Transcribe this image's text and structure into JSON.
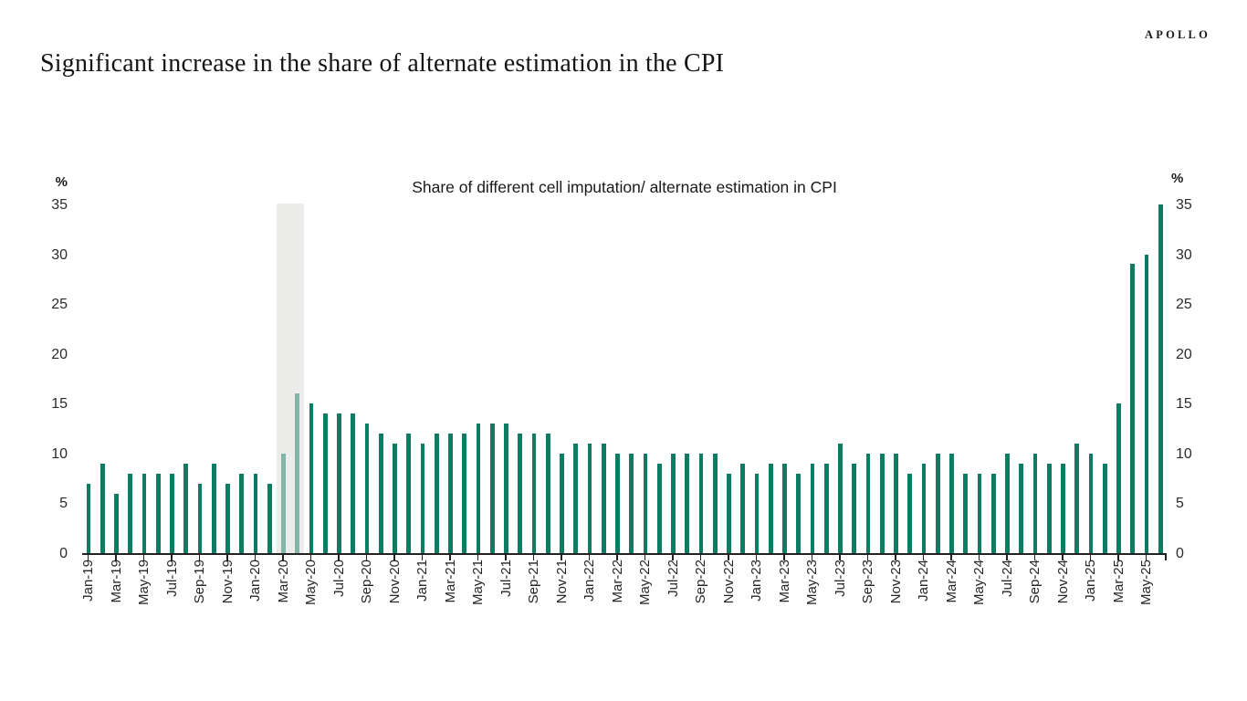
{
  "logo": "APOLLO",
  "title": "Significant increase in the share of alternate estimation in the CPI",
  "chart_data": {
    "type": "bar",
    "title": "Share of different cell imputation/ alternate estimation in CPI",
    "ylabel_left": "%",
    "ylabel_right": "%",
    "ylim": [
      0,
      35
    ],
    "yticks": [
      0,
      5,
      10,
      15,
      20,
      25,
      30,
      35
    ],
    "grid": false,
    "legend": "none",
    "bar_color": "#0E7C63",
    "highlight_band": {
      "from": "Mar-20",
      "to": "Apr-20",
      "color": "#ECECEA",
      "overlay": "rgba(236,236,234,0.52)"
    },
    "categories": [
      "Jan-19",
      "Feb-19",
      "Mar-19",
      "Apr-19",
      "May-19",
      "Jun-19",
      "Jul-19",
      "Aug-19",
      "Sep-19",
      "Oct-19",
      "Nov-19",
      "Dec-19",
      "Jan-20",
      "Feb-20",
      "Mar-20",
      "Apr-20",
      "May-20",
      "Jun-20",
      "Jul-20",
      "Aug-20",
      "Sep-20",
      "Oct-20",
      "Nov-20",
      "Dec-20",
      "Jan-21",
      "Feb-21",
      "Mar-21",
      "Apr-21",
      "May-21",
      "Jun-21",
      "Jul-21",
      "Aug-21",
      "Sep-21",
      "Oct-21",
      "Nov-21",
      "Dec-21",
      "Jan-22",
      "Feb-22",
      "Mar-22",
      "Apr-22",
      "May-22",
      "Jun-22",
      "Jul-22",
      "Aug-22",
      "Sep-22",
      "Oct-22",
      "Nov-22",
      "Dec-22",
      "Jan-23",
      "Feb-23",
      "Mar-23",
      "Apr-23",
      "May-23",
      "Jun-23",
      "Jul-23",
      "Aug-23",
      "Sep-23",
      "Oct-23",
      "Nov-23",
      "Dec-23",
      "Jan-24",
      "Feb-24",
      "Mar-24",
      "Apr-24",
      "May-24",
      "Jun-24",
      "Jul-24",
      "Aug-24",
      "Sep-24",
      "Oct-24",
      "Nov-24",
      "Dec-24",
      "Jan-25",
      "Feb-25",
      "Mar-25",
      "Apr-25",
      "May-25",
      "Jun-25"
    ],
    "values": [
      7,
      9,
      6,
      8,
      8,
      8,
      8,
      9,
      7,
      9,
      7,
      8,
      8,
      7,
      10,
      16,
      15,
      14,
      14,
      14,
      13,
      12,
      11,
      12,
      11,
      12,
      12,
      12,
      13,
      13,
      13,
      12,
      12,
      12,
      10,
      11,
      11,
      11,
      10,
      10,
      10,
      9,
      10,
      10,
      10,
      10,
      8,
      9,
      8,
      9,
      9,
      8,
      9,
      9,
      11,
      9,
      10,
      10,
      10,
      8,
      9,
      10,
      10,
      8,
      8,
      8,
      10,
      9,
      10,
      9,
      9,
      11,
      10,
      9,
      15,
      29,
      30,
      35
    ],
    "xtick_labels": [
      "Jan-19",
      "Mar-19",
      "May-19",
      "Jul-19",
      "Sep-19",
      "Nov-19",
      "Jan-20",
      "Mar-20",
      "May-20",
      "Jul-20",
      "Sep-20",
      "Nov-20",
      "Jan-21",
      "Mar-21",
      "May-21",
      "Jul-21",
      "Sep-21",
      "Nov-21",
      "Jan-22",
      "Mar-22",
      "May-22",
      "Jul-22",
      "Sep-22",
      "Nov-22",
      "Jan-23",
      "Mar-23",
      "May-23",
      "Jul-23",
      "Sep-23",
      "Nov-23",
      "Jan-24",
      "Mar-24",
      "May-24",
      "Jul-24",
      "Sep-24",
      "Nov-24",
      "Jan-25",
      "Mar-25",
      "May-25"
    ]
  }
}
